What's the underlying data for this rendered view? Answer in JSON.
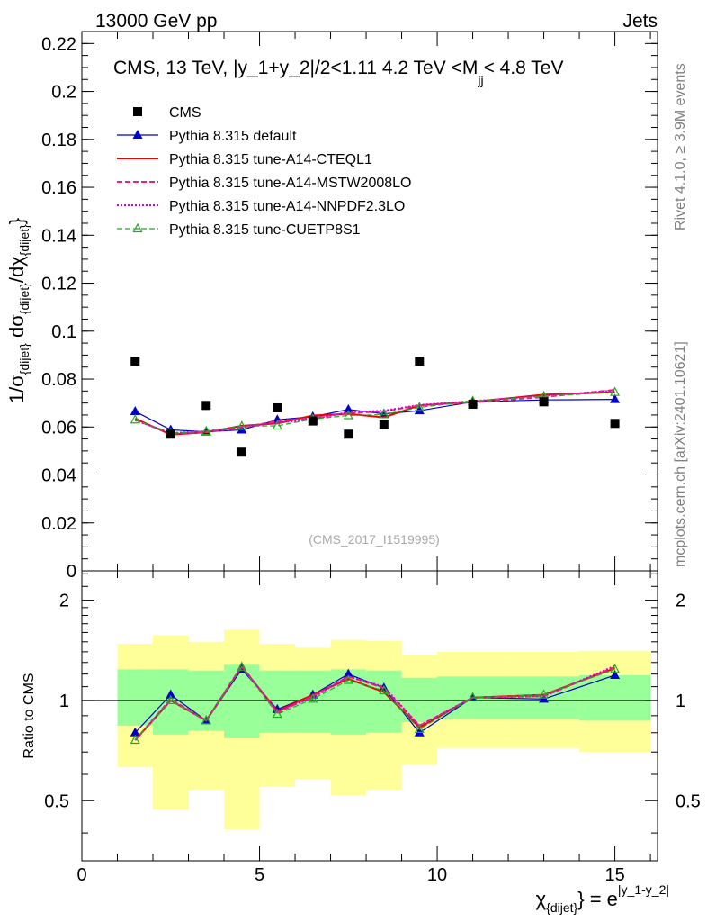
{
  "header": {
    "left": "13000 GeV pp",
    "right": "Jets"
  },
  "side_labels": {
    "rivet": "Rivet 4.1.0, ≥ 3.9M events",
    "mcplots": "mcplots.cern.ch [arXiv:2401.10621]"
  },
  "chart_data": {
    "type": "scatter",
    "title_parts": {
      "main": "CMS, 13 TeV, |y_1+y_2|/2<1.11 4.2 TeV <M",
      "sub": "jj",
      "tail": "< 4.8 TeV"
    },
    "watermark": "(CMS_2017_I1519995)",
    "ylabel": "1/σ{dijet} dσ{dijet}/dχ{dijet}",
    "ylabel_parts": [
      "1/σ",
      "{dijet}",
      " dσ",
      "{dijet}",
      "/dχ",
      "{dijet}",
      "}"
    ],
    "ratio_ylabel": "Ratio to CMS",
    "xlabel_parts": {
      "chi": "χ",
      "sub": "{dijet}",
      "eq": "} = e",
      "sup": "|y_1-y_2|"
    },
    "xlim": [
      0,
      16.2
    ],
    "ylim": [
      0,
      0.225
    ],
    "ratio_ylim": [
      0.33,
      2.45
    ],
    "x_ticks": [
      0,
      5,
      10,
      15
    ],
    "y_ticks": [
      0,
      0.02,
      0.04,
      0.06,
      0.08,
      0.1,
      0.12,
      0.14,
      0.16,
      0.18,
      0.2,
      0.22
    ],
    "y_tick_labels": [
      "0",
      "0.02",
      "0.04",
      "0.06",
      "0.08",
      "0.1",
      "0.12",
      "0.14",
      "0.16",
      "0.18",
      "0.2",
      "0.22"
    ],
    "ratio_y_ticks": [
      0.5,
      1,
      2
    ],
    "ratio_y_tick_labels": [
      "0.5",
      "1",
      "2"
    ],
    "bins": [
      [
        1,
        2
      ],
      [
        2,
        3
      ],
      [
        3,
        4
      ],
      [
        4,
        5
      ],
      [
        5,
        6
      ],
      [
        6,
        7
      ],
      [
        7,
        8
      ],
      [
        8,
        9
      ],
      [
        9,
        10
      ],
      [
        10,
        12
      ],
      [
        12,
        14
      ],
      [
        14,
        16
      ]
    ],
    "x": [
      1.5,
      2.5,
      3.5,
      4.5,
      5.5,
      6.5,
      7.5,
      8.5,
      9.5,
      11,
      13,
      15
    ],
    "data": {
      "name": "CMS",
      "values": [
        0.0875,
        0.057,
        0.069,
        0.0495,
        0.068,
        0.0625,
        0.057,
        0.061,
        0.0875,
        0.0695,
        0.0705,
        0.0615
      ]
    },
    "ratio_band_inner": [
      [
        0.84,
        1.24
      ],
      [
        0.79,
        1.24
      ],
      [
        0.81,
        1.23
      ],
      [
        0.77,
        1.28
      ],
      [
        0.8,
        1.23
      ],
      [
        0.8,
        1.23
      ],
      [
        0.79,
        1.24
      ],
      [
        0.8,
        1.23
      ],
      [
        0.86,
        1.17
      ],
      [
        0.88,
        1.18
      ],
      [
        0.88,
        1.18
      ],
      [
        0.87,
        1.19
      ]
    ],
    "ratio_band_outer": [
      [
        0.63,
        1.48
      ],
      [
        0.47,
        1.57
      ],
      [
        0.54,
        1.5
      ],
      [
        0.41,
        1.63
      ],
      [
        0.55,
        1.48
      ],
      [
        0.58,
        1.44
      ],
      [
        0.52,
        1.52
      ],
      [
        0.54,
        1.51
      ],
      [
        0.64,
        1.37
      ],
      [
        0.72,
        1.4
      ],
      [
        0.72,
        1.4
      ],
      [
        0.7,
        1.41
      ]
    ],
    "series": [
      {
        "name": "Pythia 8.315 default",
        "color": "#0000cc",
        "style": "solid",
        "width": 1.2,
        "marker": "triangle-filled",
        "values": [
          0.0665,
          0.0588,
          0.058,
          0.0588,
          0.063,
          0.0643,
          0.0673,
          0.0655,
          0.0668,
          0.0705,
          0.0713,
          0.0715
        ],
        "ratio": [
          0.8,
          1.04,
          0.87,
          1.24,
          0.94,
          1.04,
          1.2,
          1.09,
          0.8,
          1.02,
          1.01,
          1.19
        ]
      },
      {
        "name": "Pythia 8.315 tune-A14-CTEQL1",
        "color": "#ee0000",
        "style": "solid",
        "width": 2,
        "marker": "none",
        "values": [
          0.0635,
          0.0568,
          0.0578,
          0.0605,
          0.0615,
          0.0648,
          0.0655,
          0.064,
          0.069,
          0.0705,
          0.0735,
          0.0745
        ],
        "ratio": [
          0.76,
          1.0,
          0.87,
          1.26,
          0.93,
          1.04,
          1.16,
          1.06,
          0.83,
          1.02,
          1.04,
          1.25
        ]
      },
      {
        "name": "Pythia 8.315 tune-A14-MSTW2008LO",
        "color": "#ee2277",
        "style": "dashed",
        "width": 2,
        "marker": "none",
        "values": [
          0.063,
          0.0572,
          0.0578,
          0.0598,
          0.0625,
          0.0638,
          0.0658,
          0.0665,
          0.069,
          0.0703,
          0.0725,
          0.0755
        ],
        "ratio": [
          0.76,
          1.01,
          0.87,
          1.27,
          0.92,
          1.03,
          1.18,
          1.09,
          0.84,
          1.02,
          1.03,
          1.26
        ]
      },
      {
        "name": "Pythia 8.315 tune-A14-NNPDF2.3LO",
        "color": "#dd00dd",
        "style": "dotted",
        "width": 2,
        "marker": "none",
        "values": [
          0.0628,
          0.0575,
          0.0582,
          0.06,
          0.0618,
          0.0632,
          0.0662,
          0.0668,
          0.0692,
          0.0708,
          0.073,
          0.0752
        ],
        "ratio": [
          0.76,
          1.0,
          0.87,
          1.26,
          0.93,
          1.02,
          1.18,
          1.1,
          0.84,
          1.02,
          1.03,
          1.27
        ]
      },
      {
        "name": "Pythia 8.315 tune-CUETP8S1",
        "color": "#22aa22",
        "style": "dashed",
        "width": 1.2,
        "marker": "triangle-open",
        "values": [
          0.063,
          0.0575,
          0.0582,
          0.0603,
          0.0605,
          0.0633,
          0.0648,
          0.0652,
          0.0682,
          0.0708,
          0.0728,
          0.0745
        ],
        "ratio": [
          0.76,
          1.0,
          0.87,
          1.26,
          0.91,
          1.01,
          1.15,
          1.07,
          0.82,
          1.02,
          1.04,
          1.24
        ]
      }
    ]
  }
}
